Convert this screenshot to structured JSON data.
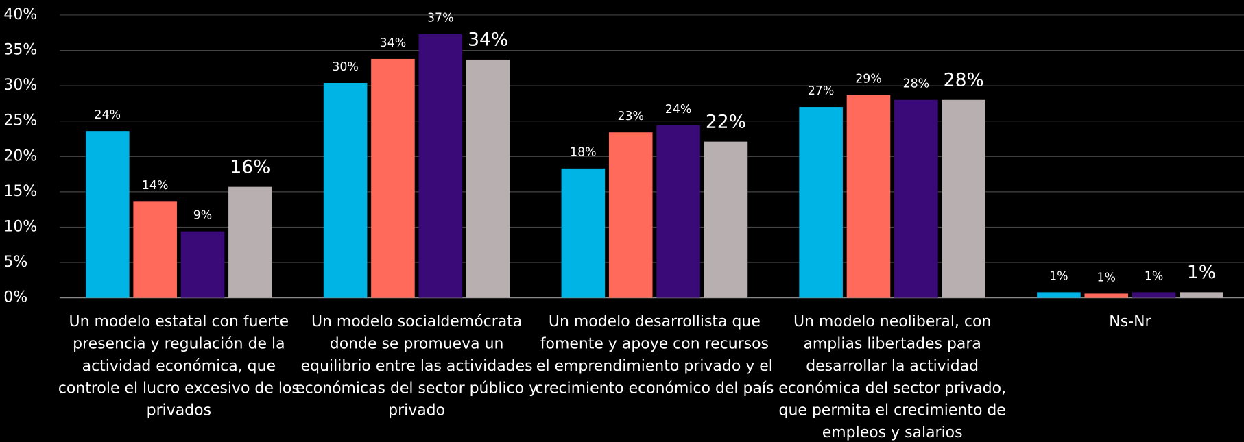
{
  "chart_data": {
    "type": "bar",
    "categories": [
      "Un modelo estatal con fuerte presencia y regulación de la actividad económica, que controle el lucro excesivo de los privados",
      "Un modelo socialdemócrata donde se promueva un equilibrio entre las actividades económicas del sector público y privado",
      "Un modelo desarrollista que fomente y apoye con recursos el emprendimiento privado y el crecimiento económico del país",
      "Un modelo neoliberal, con amplias libertades para desarrollar la actividad económica del sector privado, que permita el crecimiento de empleos y salarios",
      "Ns-Nr"
    ],
    "series": [
      {
        "color": "#00b4e6",
        "values": [
          23.6,
          30.4,
          18.3,
          27.0,
          0.8
        ],
        "value_labels": [
          "24%",
          "30%",
          "18%",
          "27%",
          "1%"
        ]
      },
      {
        "color": "#ff6a5a",
        "values": [
          13.6,
          33.8,
          23.4,
          28.7,
          0.6
        ],
        "value_labels": [
          "14%",
          "34%",
          "23%",
          "29%",
          "1%"
        ]
      },
      {
        "color": "#3a0a78",
        "values": [
          9.4,
          37.3,
          24.4,
          28.0,
          0.8
        ],
        "value_labels": [
          "9%",
          "37%",
          "24%",
          "28%",
          "1%"
        ]
      },
      {
        "color": "#b8b0b0",
        "values": [
          15.7,
          33.7,
          22.1,
          28.0,
          0.8
        ],
        "value_labels": [
          "16%",
          "34%",
          "22%",
          "28%",
          "1%"
        ]
      }
    ],
    "ylim": [
      0,
      40
    ],
    "yticks": [
      {
        "value": 0,
        "label": "0%"
      },
      {
        "value": 5,
        "label": "5%"
      },
      {
        "value": 10,
        "label": "10%"
      },
      {
        "value": 15,
        "label": "15%"
      },
      {
        "value": 20,
        "label": "20%"
      },
      {
        "value": 25,
        "label": "25%"
      },
      {
        "value": 30,
        "label": "30%"
      },
      {
        "value": 35,
        "label": "35%"
      },
      {
        "value": 40,
        "label": "40%"
      }
    ],
    "grid": true
  }
}
